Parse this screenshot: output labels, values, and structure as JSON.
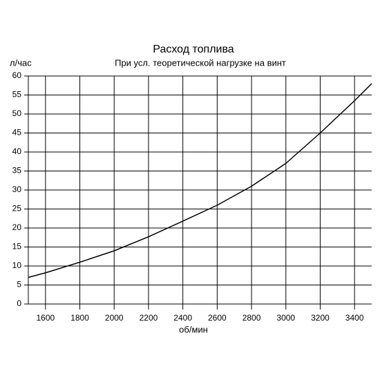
{
  "chart_data": {
    "type": "line",
    "title": "Расход топлива",
    "subtitle": "При усл. теоретической нагрузке на винт",
    "x_label": "об/мин",
    "y_label": "л/час",
    "x": [
      1500,
      1600,
      1800,
      2000,
      2200,
      2400,
      2600,
      2800,
      3000,
      3200,
      3400,
      3500
    ],
    "values": [
      7,
      8.2,
      11,
      14,
      17.7,
      21.8,
      26,
      31,
      37,
      45,
      53.5,
      58
    ],
    "color": "#000000",
    "xlim": [
      1500,
      3500
    ],
    "xticks": [
      1600,
      1800,
      2000,
      2200,
      2400,
      2600,
      2800,
      3000,
      3200,
      3400
    ],
    "ylim": [
      0,
      60
    ],
    "yticks": [
      0,
      5,
      10,
      15,
      20,
      25,
      30,
      35,
      40,
      45,
      50,
      55,
      60
    ],
    "grid": true
  }
}
